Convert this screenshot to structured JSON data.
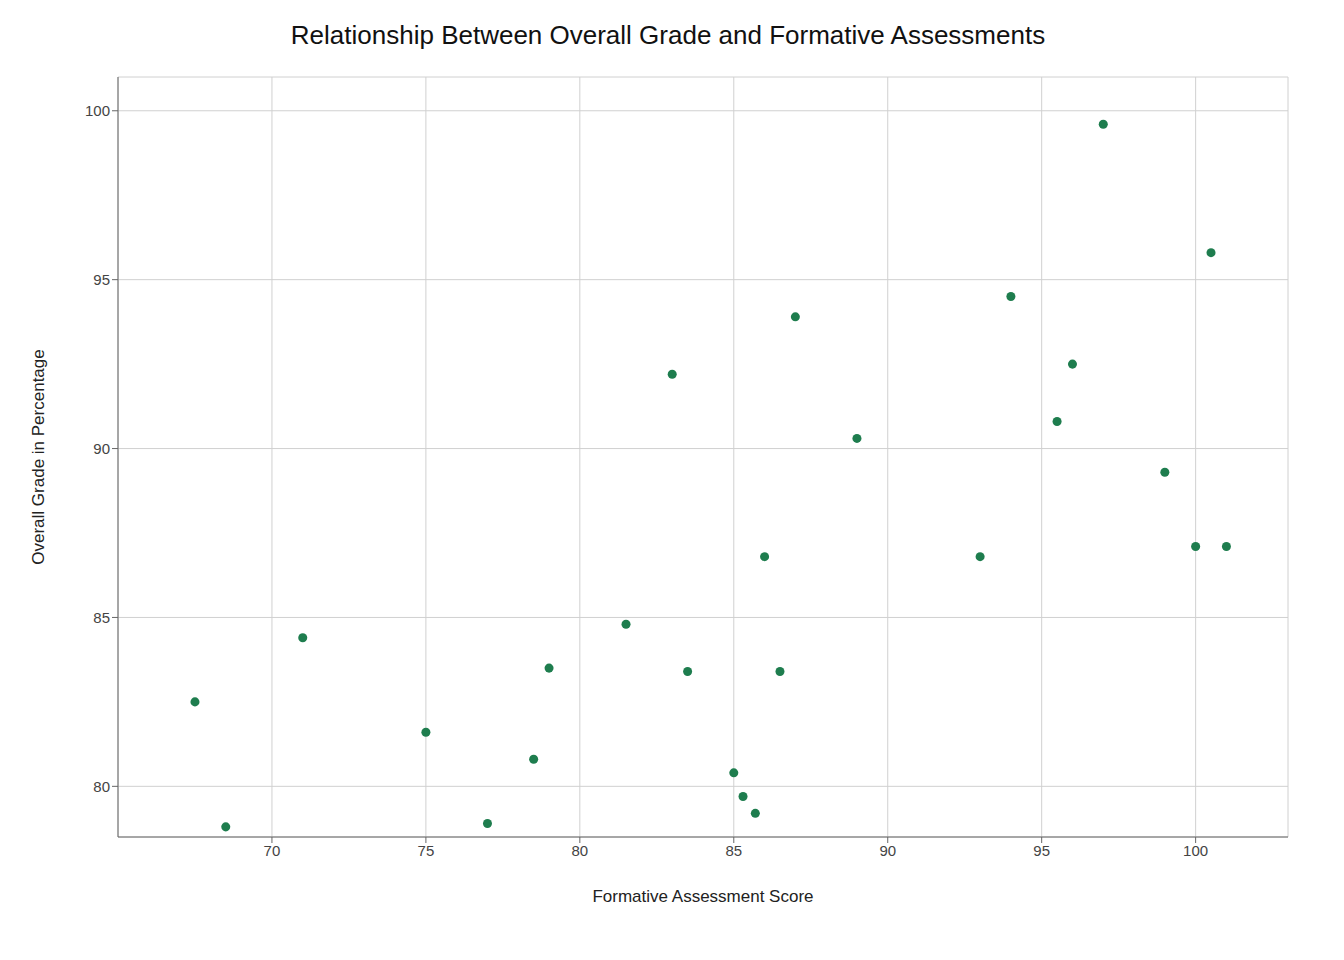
{
  "chart_data": {
    "type": "scatter",
    "title": "Relationship Between Overall Grade and Formative Assessments",
    "xlabel": "Formative Assessment Score",
    "ylabel": "Overall Grade in Percentage",
    "color": "#1e7d4e",
    "xlim": [
      65,
      103
    ],
    "ylim": [
      78.5,
      101
    ],
    "xticks": [
      70,
      75,
      80,
      85,
      90,
      95,
      100
    ],
    "yticks": [
      80,
      85,
      90,
      95,
      100
    ],
    "grid": true,
    "x": [
      67.5,
      68.5,
      71,
      75,
      77,
      78.5,
      79,
      81.5,
      83,
      83.5,
      85,
      85.3,
      85.7,
      86,
      86.5,
      87,
      89,
      93,
      94,
      95.5,
      96,
      97,
      99,
      100,
      100.5,
      101
    ],
    "values": [
      82.5,
      78.8,
      84.4,
      81.6,
      78.9,
      80.8,
      83.5,
      84.8,
      92.2,
      83.4,
      80.4,
      79.7,
      79.2,
      86.8,
      83.4,
      93.9,
      90.3,
      86.8,
      94.5,
      90.8,
      92.5,
      99.6,
      89.3,
      87.1,
      95.8,
      87.1
    ]
  }
}
